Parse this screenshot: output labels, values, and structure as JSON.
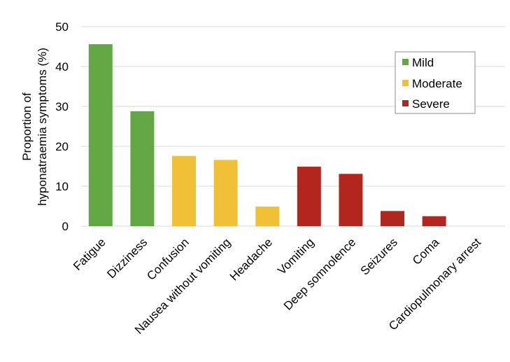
{
  "chart_data": {
    "type": "bar",
    "ylabel_lines": [
      "Proportion of",
      "hyponatraemia symptoms  (%)"
    ],
    "ylim": [
      0,
      50
    ],
    "yticks": [
      0,
      10,
      20,
      30,
      40,
      50
    ],
    "grid": true,
    "legend_position": "top-right",
    "categories": [
      "Fatigue",
      "Dizziness",
      "Confusion",
      "Nausea without vomiting",
      "Headache",
      "Vomiting",
      "Deep somnolence",
      "Seizures",
      "Coma",
      "Cardiopulmonary arrest"
    ],
    "values": [
      45.6,
      28.8,
      17.6,
      16.6,
      4.9,
      14.9,
      13.1,
      3.8,
      2.5,
      0
    ],
    "severity": [
      "Mild",
      "Mild",
      "Moderate",
      "Moderate",
      "Moderate",
      "Severe",
      "Severe",
      "Severe",
      "Severe",
      "Severe"
    ],
    "legend": [
      {
        "name": "Mild",
        "color": "#63a744"
      },
      {
        "name": "Moderate",
        "color": "#f2c036"
      },
      {
        "name": "Severe",
        "color": "#b3261e"
      }
    ]
  }
}
